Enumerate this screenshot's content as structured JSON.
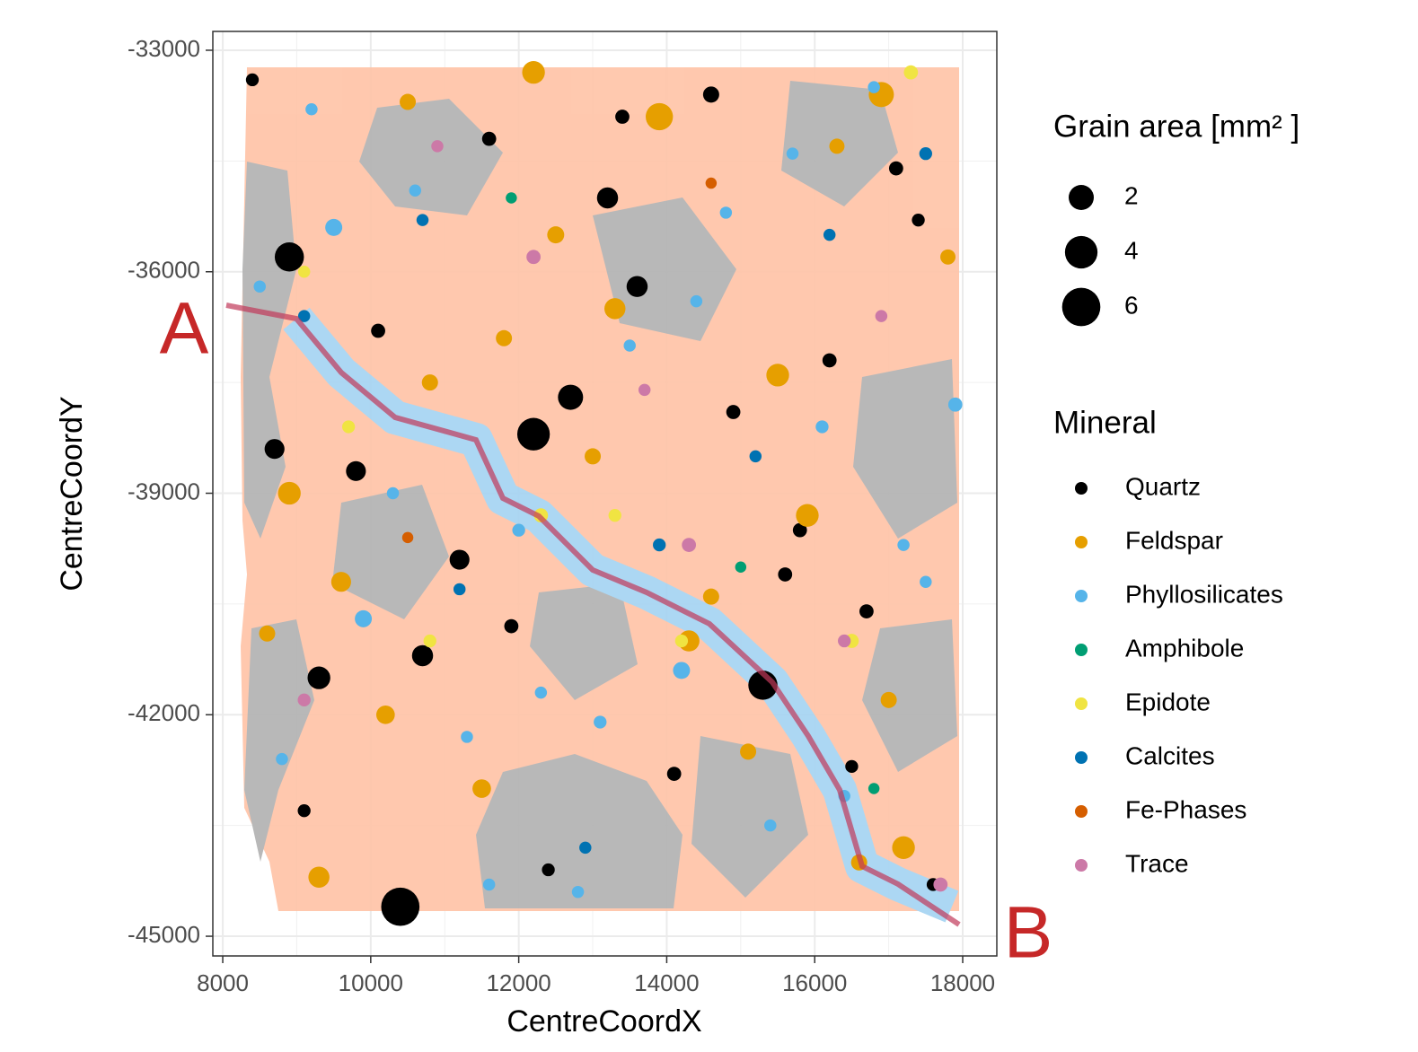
{
  "chart_data": {
    "type": "scatter",
    "x_label": "CentreCoordX",
    "y_label": "CentreCoordY",
    "xlim": [
      7866,
      18461
    ],
    "ylim": [
      -45267,
      -32745
    ],
    "xticks": [
      8000,
      10000,
      12000,
      14000,
      16000,
      18000
    ],
    "yticks": [
      -33000,
      -36000,
      -39000,
      -42000,
      -45000
    ],
    "grid": true,
    "size_legend_title": "Grain area [mm² ]",
    "size_breaks": [
      2,
      4,
      6
    ],
    "color_legend_title": "Mineral",
    "annotations": [
      "A",
      "B"
    ],
    "series": [
      {
        "name": "Quartz",
        "color": "#000000",
        "x": [
          8400,
          8900,
          9300,
          9800,
          10400,
          10700,
          11200,
          11600,
          12200,
          12700,
          13200,
          13600,
          14100,
          14600,
          15300,
          15800,
          16200,
          16700,
          17100,
          17600,
          9100,
          10100,
          11900,
          13400,
          14900,
          16500,
          17400,
          8700,
          12400,
          15600
        ],
        "y": [
          -33400,
          -35800,
          -41500,
          -38700,
          -44600,
          -41200,
          -39900,
          -34200,
          -38200,
          -37700,
          -35000,
          -36200,
          -42800,
          -33600,
          -41600,
          -39500,
          -37200,
          -40600,
          -34600,
          -44300,
          -43300,
          -36800,
          -40800,
          -33900,
          -37900,
          -42700,
          -35300,
          -38400,
          -44100,
          -40100
        ],
        "size": [
          0.2,
          3,
          1.5,
          1,
          6,
          1.2,
          1,
          0.3,
          4,
          2,
          1.2,
          1.2,
          0.3,
          0.5,
          3,
          0.3,
          0.3,
          0.3,
          0.3,
          0.2,
          0.2,
          0.3,
          0.3,
          0.3,
          0.3,
          0.2,
          0.2,
          1,
          0.2,
          0.3
        ]
      },
      {
        "name": "Feldspar",
        "color": "#E69F00",
        "x": [
          12200,
          13900,
          16900,
          8900,
          9600,
          10200,
          10800,
          11500,
          12500,
          13300,
          14300,
          15100,
          15900,
          16600,
          17200,
          17800,
          9300,
          10500,
          11800,
          13000,
          14600,
          15500,
          16300,
          17000,
          8600
        ],
        "y": [
          -33300,
          -33900,
          -33600,
          -39000,
          -40200,
          -42000,
          -37500,
          -43000,
          -35500,
          -36500,
          -41000,
          -42500,
          -39300,
          -44000,
          -43800,
          -35800,
          -44200,
          -33700,
          -36900,
          -38500,
          -40400,
          -37400,
          -34300,
          -41800,
          -40900
        ],
        "size": [
          1.5,
          2.5,
          2,
          1.5,
          1,
          0.8,
          0.5,
          0.8,
          0.6,
          1.2,
          1.2,
          0.5,
          1.5,
          0.5,
          1.5,
          0.4,
          1.2,
          0.5,
          0.5,
          0.5,
          0.5,
          1.5,
          0.4,
          0.5,
          0.5
        ]
      },
      {
        "name": "Phyllosilicates",
        "color": "#56B4E9",
        "x": [
          8500,
          9200,
          9900,
          10600,
          11300,
          12000,
          12800,
          13500,
          14200,
          14800,
          15400,
          16100,
          16800,
          17500,
          17900,
          8800,
          10300,
          11600,
          13100,
          14400,
          15700,
          17200,
          9500,
          12300,
          16400
        ],
        "y": [
          -36200,
          -33800,
          -40700,
          -34900,
          -42300,
          -39500,
          -44400,
          -37000,
          -41400,
          -35200,
          -43500,
          -38100,
          -33500,
          -40200,
          -37800,
          -42600,
          -39000,
          -44300,
          -42100,
          -36400,
          -34400,
          -39700,
          -35400,
          -41700,
          -43100
        ],
        "size": [
          0.15,
          0.15,
          0.6,
          0.15,
          0.15,
          0.2,
          0.15,
          0.15,
          0.6,
          0.15,
          0.15,
          0.2,
          0.15,
          0.15,
          0.3,
          0.15,
          0.15,
          0.15,
          0.2,
          0.15,
          0.15,
          0.15,
          0.6,
          0.15,
          0.15
        ]
      },
      {
        "name": "Amphibole",
        "color": "#009E73",
        "x": [
          11900,
          15000,
          16800
        ],
        "y": [
          -35000,
          -40000,
          -43000
        ],
        "size": [
          0.1,
          0.1,
          0.1
        ]
      },
      {
        "name": "Epidote",
        "color": "#F0E442",
        "x": [
          9700,
          10800,
          12300,
          14200,
          16500,
          17300,
          13300,
          9100
        ],
        "y": [
          -38100,
          -41000,
          -39300,
          -41000,
          -41000,
          -33300,
          -39300,
          -36000
        ],
        "size": [
          0.2,
          0.2,
          0.3,
          0.2,
          0.3,
          0.3,
          0.2,
          0.15
        ]
      },
      {
        "name": "Calcites",
        "color": "#0072B2",
        "x": [
          9100,
          10700,
          13900,
          15200,
          16200,
          17500,
          12900,
          11200
        ],
        "y": [
          -36600,
          -35300,
          -39700,
          -38500,
          -35500,
          -34400,
          -43800,
          -40300
        ],
        "size": [
          0.15,
          0.15,
          0.2,
          0.15,
          0.15,
          0.2,
          0.15,
          0.15
        ]
      },
      {
        "name": "Fe-Phases",
        "color": "#D55E00",
        "x": [
          10500,
          14600
        ],
        "y": [
          -39600,
          -34800
        ],
        "size": [
          0.1,
          0.1
        ]
      },
      {
        "name": "Trace",
        "color": "#CC79A7",
        "x": [
          12200,
          10900,
          14300,
          16400,
          17700,
          9100,
          13700,
          16900
        ],
        "y": [
          -35800,
          -34300,
          -39700,
          -41000,
          -44300,
          -41800,
          -37600,
          -36600
        ],
        "size": [
          0.3,
          0.15,
          0.3,
          0.2,
          0.3,
          0.2,
          0.15,
          0.15
        ]
      }
    ]
  }
}
